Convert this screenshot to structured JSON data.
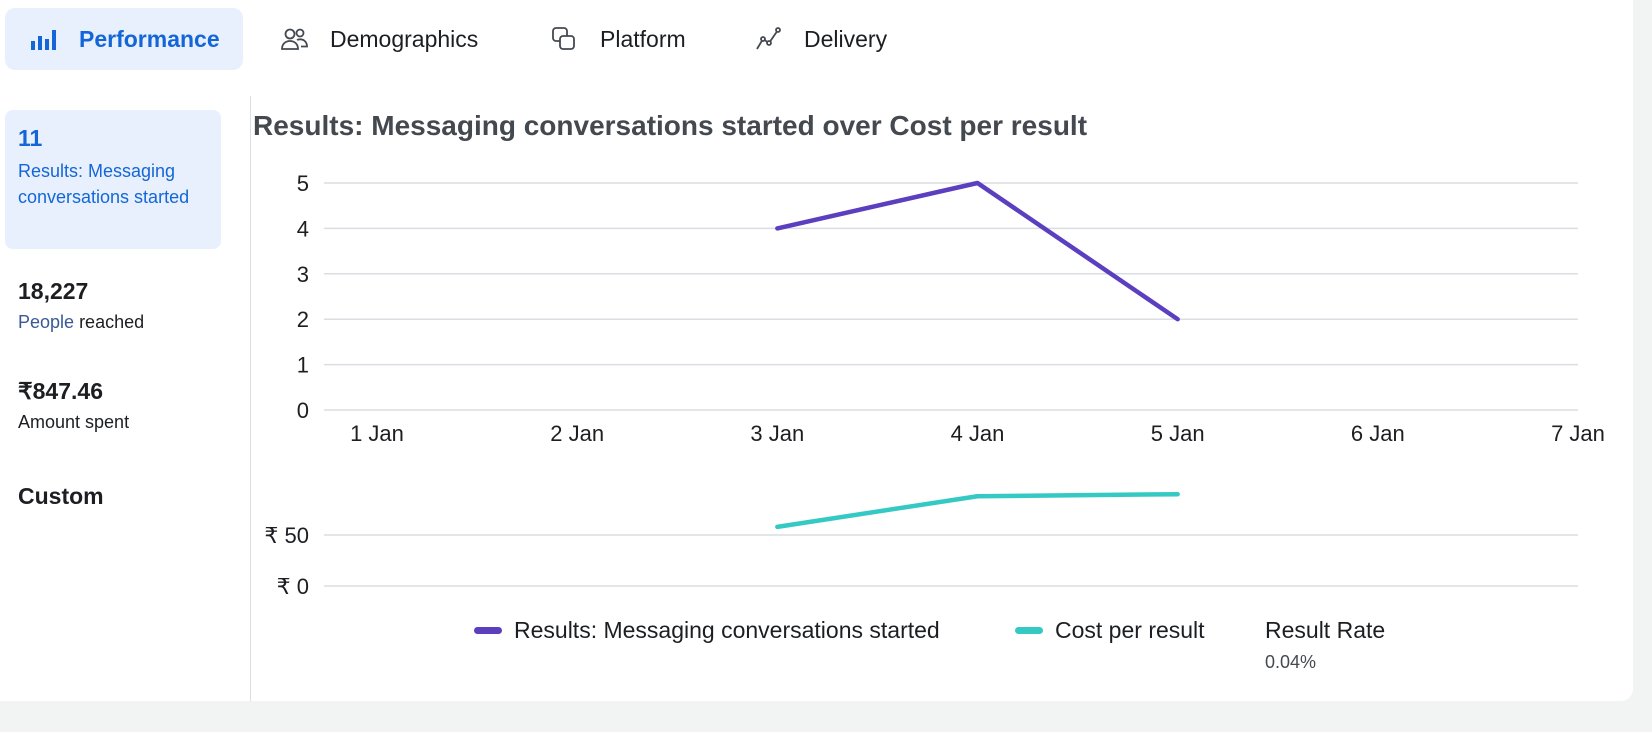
{
  "tabs": [
    {
      "label": "Performance",
      "icon": "bar-chart-icon",
      "active": true
    },
    {
      "label": "Demographics",
      "icon": "people-icon",
      "active": false
    },
    {
      "label": "Platform",
      "icon": "platform-icon",
      "active": false
    },
    {
      "label": "Delivery",
      "icon": "delivery-icon",
      "active": false
    }
  ],
  "metrics": [
    {
      "value": "11",
      "label": "Results: Messaging conversations started",
      "active": true
    },
    {
      "value": "18,227",
      "label_link": "People",
      "label_rest": " reached",
      "active": false
    },
    {
      "value": "₹847.46",
      "label": "Amount spent",
      "active": false
    },
    {
      "value": "Custom",
      "active": false
    }
  ],
  "colors": {
    "accent": "#1466d8",
    "results_series": "#5b3fbf",
    "cost_series": "#35c9c4",
    "grid": "#dadde1"
  },
  "chart_data": {
    "type": "line",
    "title": "Results: Messaging conversations started over Cost per result",
    "categories": [
      "1 Jan",
      "2 Jan",
      "3 Jan",
      "4 Jan",
      "5 Jan",
      "6 Jan",
      "7 Jan"
    ],
    "top_panel": {
      "yticks": [
        "0",
        "1",
        "2",
        "3",
        "4",
        "5"
      ],
      "ylim": [
        0,
        5
      ],
      "series": [
        {
          "name": "Results: Messaging conversations started",
          "values": [
            null,
            null,
            4,
            5,
            2,
            null,
            null
          ]
        }
      ]
    },
    "bottom_panel": {
      "yticks": [
        "₹ 0",
        "₹ 50"
      ],
      "ylim": [
        0,
        100
      ],
      "series": [
        {
          "name": "Cost per result",
          "values": [
            null,
            null,
            58,
            88,
            90,
            null,
            null
          ]
        }
      ]
    },
    "grid": true,
    "legend_position": "bottom-center"
  },
  "legend": {
    "results": "Results: Messaging conversations started",
    "cost": "Cost per result",
    "rate_label": "Result Rate",
    "rate_value": "0.04%"
  }
}
